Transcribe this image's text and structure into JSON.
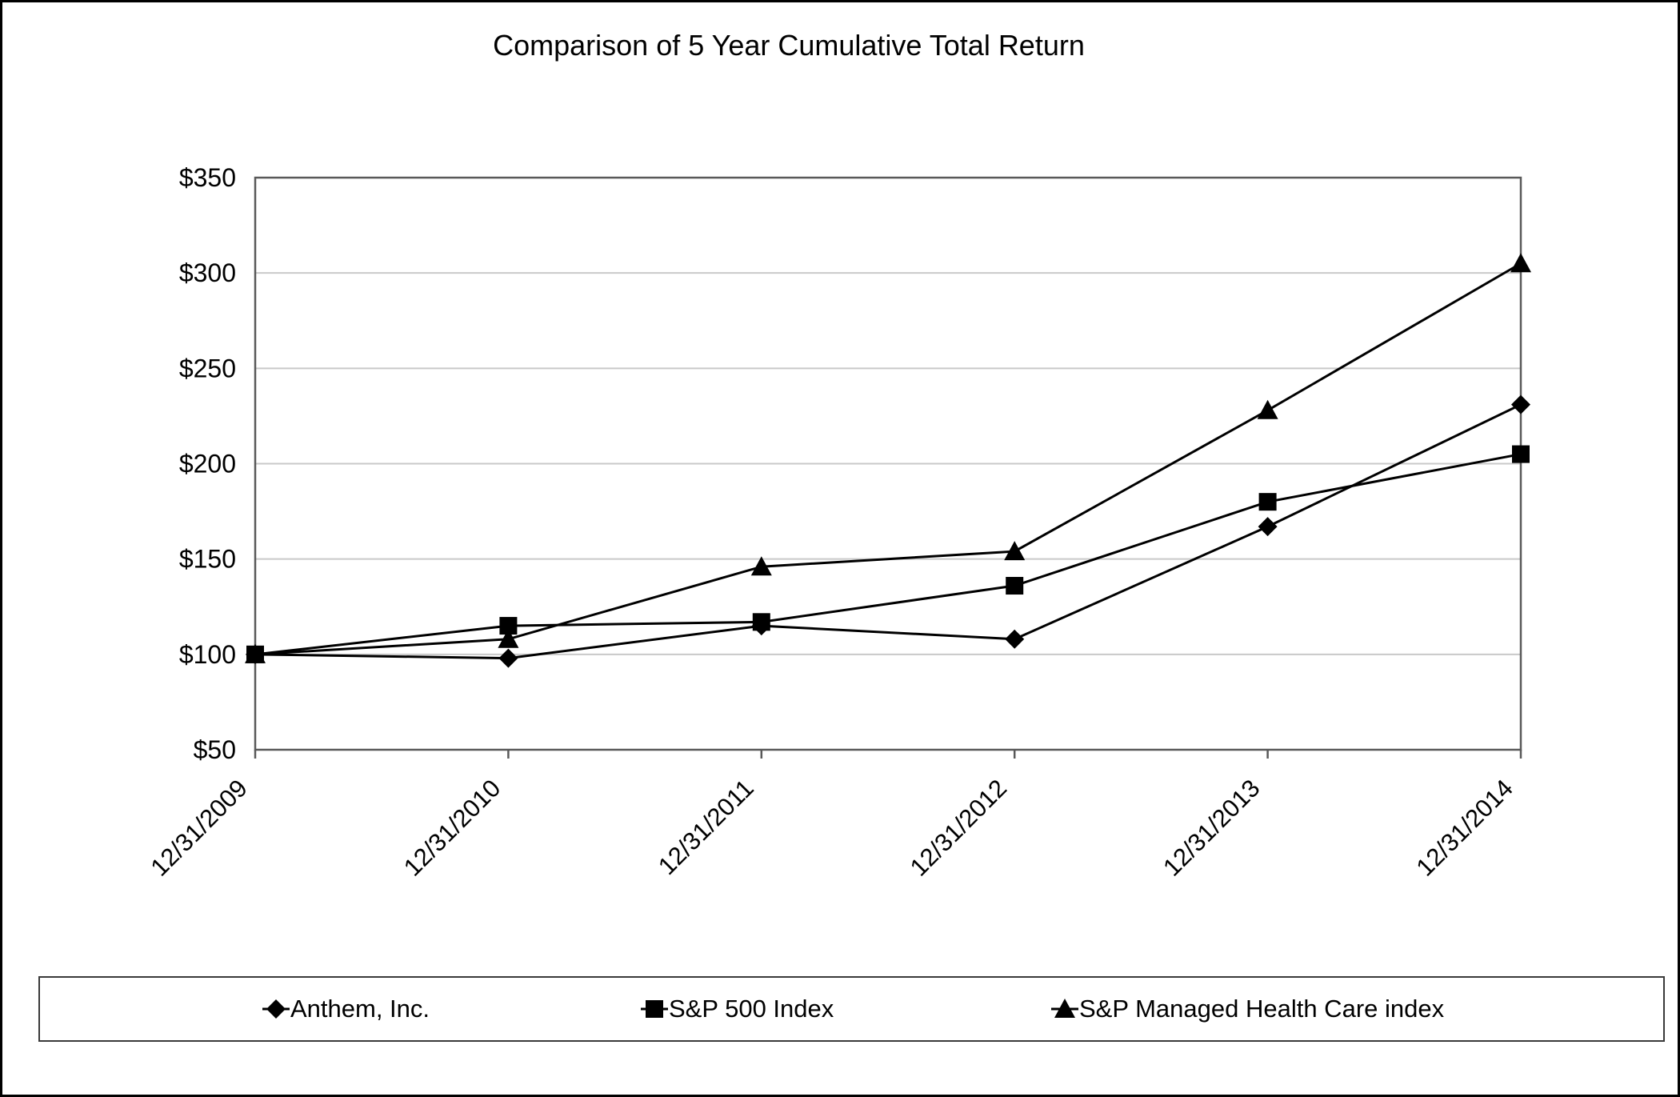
{
  "chart_data": {
    "type": "line",
    "title": "Comparison of 5 Year Cumulative Total Return",
    "categories": [
      "12/31/2009",
      "12/31/2010",
      "12/31/2011",
      "12/31/2012",
      "12/31/2013",
      "12/31/2014"
    ],
    "series": [
      {
        "name": "Anthem, Inc.",
        "marker": "diamond",
        "color": "#000000",
        "values": [
          100,
          98,
          115,
          108,
          167,
          231
        ]
      },
      {
        "name": "S&P 500 Index",
        "marker": "square",
        "color": "#000000",
        "values": [
          100,
          115,
          117,
          136,
          180,
          205
        ]
      },
      {
        "name": "S&P Managed Health Care index",
        "marker": "triangle",
        "color": "#000000",
        "values": [
          100,
          108,
          146,
          154,
          228,
          305
        ]
      }
    ],
    "ylim": [
      50,
      350
    ],
    "y_tick_step": 50,
    "y_tick_labels": [
      "$50",
      "$100",
      "$150",
      "$200",
      "$250",
      "$300",
      "$350"
    ],
    "xlabel": "",
    "ylabel": "",
    "grid": "horizontal-only",
    "legend_position": "bottom-box",
    "colors": {
      "series_stroke": "#000000",
      "gridline": "#c9c9c9",
      "axis": "#595959",
      "text": "#000000",
      "background": "#ffffff"
    }
  }
}
